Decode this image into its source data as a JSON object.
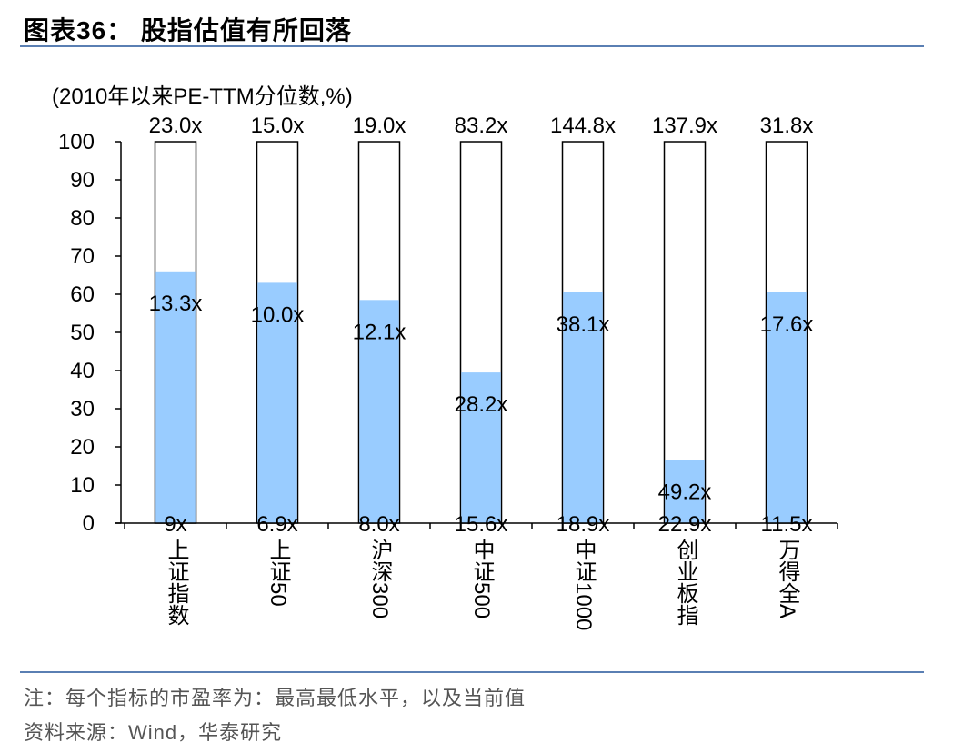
{
  "header": {
    "title": "图表36： 股指估值有所回落"
  },
  "footer": {
    "note": "注：每个指标的市盈率为：最高最低水平，以及当前值",
    "source": "资料来源：Wind，华泰研究"
  },
  "chart_data": {
    "type": "bar",
    "title": "",
    "unit_label": "(2010年以来PE-TTM分位数,%)",
    "ylim": [
      0,
      100
    ],
    "yticks": [
      0,
      10,
      20,
      30,
      40,
      50,
      60,
      70,
      80,
      90,
      100
    ],
    "grid": false,
    "categories": [
      "上证指数",
      "上证50",
      "沪深300",
      "中证500",
      "中证1000",
      "创业板指",
      "万得全A"
    ],
    "values": [
      66,
      63,
      58.5,
      39.5,
      60.5,
      16.5,
      60.5
    ],
    "max_pe_labels": [
      "23.0x",
      "15.0x",
      "19.0x",
      "83.2x",
      "144.8x",
      "137.9x",
      "31.8x"
    ],
    "current_pe_labels": [
      "13.3x",
      "10.0x",
      "12.1x",
      "28.2x",
      "38.1x",
      "49.2x",
      "17.6x"
    ],
    "min_pe_labels": [
      "9x",
      "6.9x",
      "8.0x",
      "15.6x",
      "18.9x",
      "22.9x",
      "11.5x"
    ],
    "colors": {
      "bar_fill": "#99ccff",
      "bar_outline": "#000000",
      "rule": "#5a7fb3"
    }
  }
}
